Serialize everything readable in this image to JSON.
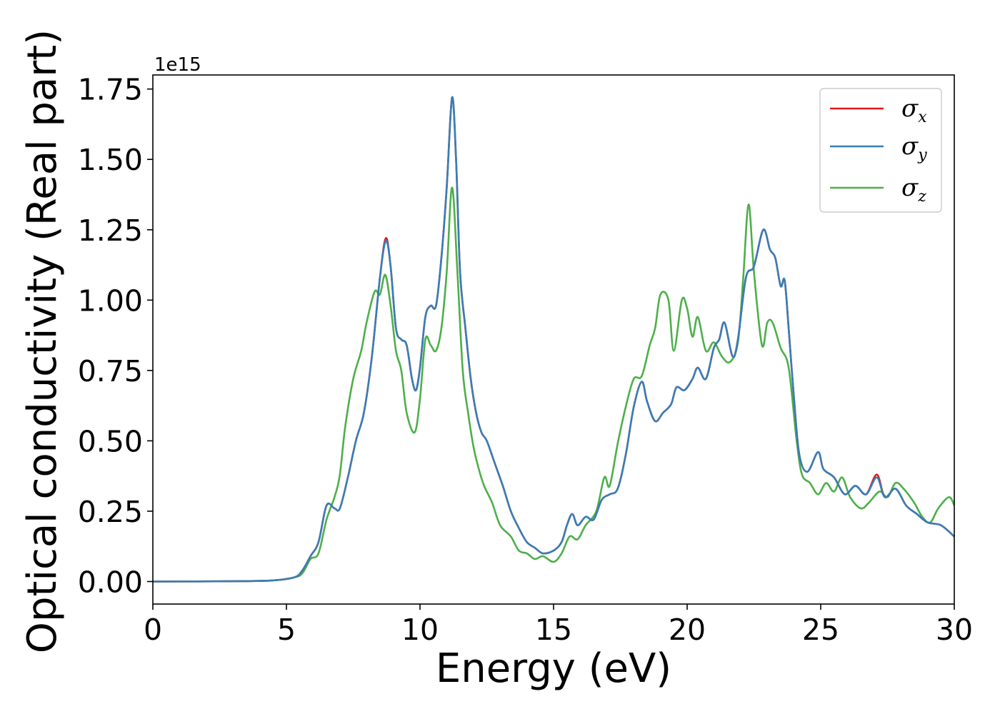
{
  "chart_data": {
    "type": "line",
    "xlabel": "Energy (eV)",
    "ylabel": "Optical conductivity (Real part)",
    "y_offset_text": "1e15",
    "xlim": [
      0,
      30
    ],
    "ylim": [
      -0.08,
      1.8
    ],
    "x_ticks": [
      0,
      5,
      10,
      15,
      20,
      25,
      30
    ],
    "x_tick_labels": [
      "0",
      "5",
      "10",
      "15",
      "20",
      "25",
      "30"
    ],
    "y_ticks": [
      0.0,
      0.25,
      0.5,
      0.75,
      1.0,
      1.25,
      1.5,
      1.75
    ],
    "y_tick_labels": [
      "0.00",
      "0.25",
      "0.50",
      "0.75",
      "1.00",
      "1.25",
      "1.50",
      "1.75"
    ],
    "grid": false,
    "legend_position": "top-right",
    "series": [
      {
        "name": "σx",
        "legend_symbol": "σ",
        "legend_sub": "x",
        "color": "#e41a1c",
        "points": [
          [
            0,
            0
          ],
          [
            3,
            0.001
          ],
          [
            4.5,
            0.004
          ],
          [
            5.3,
            0.015
          ],
          [
            5.6,
            0.04
          ],
          [
            5.9,
            0.09
          ],
          [
            6.2,
            0.14
          ],
          [
            6.5,
            0.27
          ],
          [
            6.8,
            0.26
          ],
          [
            7.0,
            0.26
          ],
          [
            7.3,
            0.37
          ],
          [
            7.6,
            0.5
          ],
          [
            7.9,
            0.6
          ],
          [
            8.2,
            0.8
          ],
          [
            8.5,
            1.08
          ],
          [
            8.72,
            1.22
          ],
          [
            8.9,
            1.12
          ],
          [
            9.1,
            0.9
          ],
          [
            9.3,
            0.86
          ],
          [
            9.5,
            0.84
          ],
          [
            9.7,
            0.72
          ],
          [
            9.85,
            0.68
          ],
          [
            10.0,
            0.76
          ],
          [
            10.2,
            0.94
          ],
          [
            10.4,
            0.98
          ],
          [
            10.6,
            0.98
          ],
          [
            10.8,
            1.15
          ],
          [
            11.0,
            1.4
          ],
          [
            11.2,
            1.72
          ],
          [
            11.35,
            1.5
          ],
          [
            11.5,
            1.1
          ],
          [
            11.7,
            0.9
          ],
          [
            11.9,
            0.72
          ],
          [
            12.1,
            0.6
          ],
          [
            12.3,
            0.53
          ],
          [
            12.5,
            0.5
          ],
          [
            12.8,
            0.42
          ],
          [
            13.1,
            0.34
          ],
          [
            13.4,
            0.25
          ],
          [
            13.7,
            0.19
          ],
          [
            14.0,
            0.14
          ],
          [
            14.3,
            0.12
          ],
          [
            14.6,
            0.1
          ],
          [
            15.0,
            0.11
          ],
          [
            15.3,
            0.14
          ],
          [
            15.5,
            0.2
          ],
          [
            15.7,
            0.24
          ],
          [
            15.9,
            0.2
          ],
          [
            16.2,
            0.23
          ],
          [
            16.5,
            0.22
          ],
          [
            16.8,
            0.29
          ],
          [
            17.1,
            0.31
          ],
          [
            17.4,
            0.33
          ],
          [
            17.7,
            0.45
          ],
          [
            18.0,
            0.62
          ],
          [
            18.3,
            0.71
          ],
          [
            18.5,
            0.64
          ],
          [
            18.8,
            0.57
          ],
          [
            19.1,
            0.6
          ],
          [
            19.4,
            0.63
          ],
          [
            19.6,
            0.69
          ],
          [
            19.9,
            0.68
          ],
          [
            20.2,
            0.72
          ],
          [
            20.4,
            0.76
          ],
          [
            20.7,
            0.72
          ],
          [
            21.0,
            0.83
          ],
          [
            21.2,
            0.86
          ],
          [
            21.4,
            0.92
          ],
          [
            21.7,
            0.8
          ],
          [
            21.9,
            0.86
          ],
          [
            22.2,
            1.08
          ],
          [
            22.5,
            1.12
          ],
          [
            22.85,
            1.25
          ],
          [
            23.1,
            1.18
          ],
          [
            23.3,
            1.15
          ],
          [
            23.5,
            1.05
          ],
          [
            23.65,
            1.07
          ],
          [
            23.8,
            0.9
          ],
          [
            24.0,
            0.65
          ],
          [
            24.2,
            0.45
          ],
          [
            24.5,
            0.39
          ],
          [
            24.9,
            0.46
          ],
          [
            25.1,
            0.4
          ],
          [
            25.5,
            0.37
          ],
          [
            25.9,
            0.31
          ],
          [
            26.3,
            0.34
          ],
          [
            26.7,
            0.31
          ],
          [
            27.1,
            0.38
          ],
          [
            27.4,
            0.3
          ],
          [
            27.8,
            0.33
          ],
          [
            28.2,
            0.27
          ],
          [
            28.6,
            0.24
          ],
          [
            29.0,
            0.21
          ],
          [
            29.5,
            0.2
          ],
          [
            30,
            0.16
          ]
        ]
      },
      {
        "name": "σy",
        "legend_symbol": "σ",
        "legend_sub": "y",
        "color": "#377eb8",
        "points": [
          [
            0,
            0
          ],
          [
            3,
            0.001
          ],
          [
            4.5,
            0.004
          ],
          [
            5.3,
            0.015
          ],
          [
            5.6,
            0.04
          ],
          [
            5.9,
            0.09
          ],
          [
            6.2,
            0.14
          ],
          [
            6.5,
            0.27
          ],
          [
            6.8,
            0.26
          ],
          [
            7.0,
            0.26
          ],
          [
            7.3,
            0.37
          ],
          [
            7.6,
            0.5
          ],
          [
            7.9,
            0.6
          ],
          [
            8.2,
            0.8
          ],
          [
            8.5,
            1.08
          ],
          [
            8.72,
            1.21
          ],
          [
            8.9,
            1.12
          ],
          [
            9.1,
            0.9
          ],
          [
            9.3,
            0.86
          ],
          [
            9.5,
            0.84
          ],
          [
            9.7,
            0.72
          ],
          [
            9.85,
            0.68
          ],
          [
            10.0,
            0.76
          ],
          [
            10.2,
            0.94
          ],
          [
            10.4,
            0.98
          ],
          [
            10.6,
            0.98
          ],
          [
            10.8,
            1.15
          ],
          [
            11.0,
            1.4
          ],
          [
            11.2,
            1.72
          ],
          [
            11.35,
            1.5
          ],
          [
            11.5,
            1.1
          ],
          [
            11.7,
            0.9
          ],
          [
            11.9,
            0.72
          ],
          [
            12.1,
            0.6
          ],
          [
            12.3,
            0.53
          ],
          [
            12.5,
            0.5
          ],
          [
            12.8,
            0.42
          ],
          [
            13.1,
            0.34
          ],
          [
            13.4,
            0.25
          ],
          [
            13.7,
            0.19
          ],
          [
            14.0,
            0.14
          ],
          [
            14.3,
            0.12
          ],
          [
            14.6,
            0.1
          ],
          [
            15.0,
            0.11
          ],
          [
            15.3,
            0.14
          ],
          [
            15.5,
            0.2
          ],
          [
            15.7,
            0.24
          ],
          [
            15.9,
            0.2
          ],
          [
            16.2,
            0.23
          ],
          [
            16.5,
            0.22
          ],
          [
            16.8,
            0.29
          ],
          [
            17.1,
            0.31
          ],
          [
            17.4,
            0.33
          ],
          [
            17.7,
            0.45
          ],
          [
            18.0,
            0.62
          ],
          [
            18.3,
            0.71
          ],
          [
            18.5,
            0.64
          ],
          [
            18.8,
            0.57
          ],
          [
            19.1,
            0.6
          ],
          [
            19.4,
            0.63
          ],
          [
            19.6,
            0.69
          ],
          [
            19.9,
            0.68
          ],
          [
            20.2,
            0.72
          ],
          [
            20.4,
            0.76
          ],
          [
            20.7,
            0.72
          ],
          [
            21.0,
            0.83
          ],
          [
            21.2,
            0.86
          ],
          [
            21.4,
            0.92
          ],
          [
            21.7,
            0.8
          ],
          [
            21.9,
            0.86
          ],
          [
            22.2,
            1.08
          ],
          [
            22.5,
            1.12
          ],
          [
            22.85,
            1.25
          ],
          [
            23.1,
            1.18
          ],
          [
            23.3,
            1.15
          ],
          [
            23.5,
            1.05
          ],
          [
            23.65,
            1.07
          ],
          [
            23.8,
            0.9
          ],
          [
            24.0,
            0.65
          ],
          [
            24.2,
            0.45
          ],
          [
            24.5,
            0.39
          ],
          [
            24.9,
            0.46
          ],
          [
            25.1,
            0.4
          ],
          [
            25.5,
            0.37
          ],
          [
            25.9,
            0.31
          ],
          [
            26.3,
            0.34
          ],
          [
            26.7,
            0.31
          ],
          [
            27.1,
            0.37
          ],
          [
            27.4,
            0.3
          ],
          [
            27.8,
            0.33
          ],
          [
            28.2,
            0.27
          ],
          [
            28.6,
            0.24
          ],
          [
            29.0,
            0.21
          ],
          [
            29.5,
            0.2
          ],
          [
            30,
            0.16
          ]
        ]
      },
      {
        "name": "σz",
        "legend_symbol": "σ",
        "legend_sub": "z",
        "color": "#4daf4a",
        "points": [
          [
            0,
            0
          ],
          [
            3,
            0.001
          ],
          [
            4.5,
            0.004
          ],
          [
            5.3,
            0.015
          ],
          [
            5.6,
            0.03
          ],
          [
            5.9,
            0.08
          ],
          [
            6.2,
            0.1
          ],
          [
            6.5,
            0.22
          ],
          [
            6.8,
            0.3
          ],
          [
            7.0,
            0.38
          ],
          [
            7.2,
            0.55
          ],
          [
            7.5,
            0.72
          ],
          [
            7.8,
            0.82
          ],
          [
            8.0,
            0.92
          ],
          [
            8.3,
            1.03
          ],
          [
            8.5,
            1.02
          ],
          [
            8.7,
            1.09
          ],
          [
            8.9,
            0.98
          ],
          [
            9.1,
            0.82
          ],
          [
            9.3,
            0.75
          ],
          [
            9.5,
            0.6
          ],
          [
            9.8,
            0.53
          ],
          [
            10.0,
            0.65
          ],
          [
            10.2,
            0.86
          ],
          [
            10.4,
            0.84
          ],
          [
            10.6,
            0.82
          ],
          [
            10.8,
            0.9
          ],
          [
            11.0,
            1.1
          ],
          [
            11.2,
            1.4
          ],
          [
            11.4,
            1.1
          ],
          [
            11.6,
            0.75
          ],
          [
            11.8,
            0.6
          ],
          [
            12.0,
            0.48
          ],
          [
            12.2,
            0.4
          ],
          [
            12.4,
            0.34
          ],
          [
            12.7,
            0.28
          ],
          [
            13.0,
            0.2
          ],
          [
            13.4,
            0.16
          ],
          [
            13.7,
            0.11
          ],
          [
            14.0,
            0.1
          ],
          [
            14.3,
            0.08
          ],
          [
            14.6,
            0.09
          ],
          [
            15.0,
            0.07
          ],
          [
            15.3,
            0.1
          ],
          [
            15.6,
            0.16
          ],
          [
            15.9,
            0.15
          ],
          [
            16.2,
            0.2
          ],
          [
            16.6,
            0.25
          ],
          [
            16.9,
            0.37
          ],
          [
            17.1,
            0.34
          ],
          [
            17.4,
            0.49
          ],
          [
            17.7,
            0.62
          ],
          [
            18.0,
            0.72
          ],
          [
            18.3,
            0.73
          ],
          [
            18.6,
            0.84
          ],
          [
            18.8,
            0.9
          ],
          [
            19.0,
            1.02
          ],
          [
            19.3,
            1.0
          ],
          [
            19.5,
            0.82
          ],
          [
            19.8,
            1.0
          ],
          [
            20.0,
            0.97
          ],
          [
            20.2,
            0.87
          ],
          [
            20.4,
            0.94
          ],
          [
            20.7,
            0.82
          ],
          [
            21.0,
            0.85
          ],
          [
            21.3,
            0.8
          ],
          [
            21.6,
            0.78
          ],
          [
            21.9,
            0.85
          ],
          [
            22.1,
            1.08
          ],
          [
            22.3,
            1.34
          ],
          [
            22.5,
            1.1
          ],
          [
            22.8,
            0.84
          ],
          [
            23.0,
            0.92
          ],
          [
            23.2,
            0.92
          ],
          [
            23.5,
            0.83
          ],
          [
            23.8,
            0.76
          ],
          [
            24.1,
            0.5
          ],
          [
            24.3,
            0.38
          ],
          [
            24.6,
            0.35
          ],
          [
            24.9,
            0.31
          ],
          [
            25.2,
            0.35
          ],
          [
            25.5,
            0.32
          ],
          [
            25.8,
            0.37
          ],
          [
            26.1,
            0.3
          ],
          [
            26.5,
            0.26
          ],
          [
            26.8,
            0.28
          ],
          [
            27.2,
            0.32
          ],
          [
            27.5,
            0.3
          ],
          [
            27.8,
            0.35
          ],
          [
            28.1,
            0.33
          ],
          [
            28.5,
            0.28
          ],
          [
            28.8,
            0.23
          ],
          [
            29.1,
            0.21
          ],
          [
            29.4,
            0.26
          ],
          [
            29.8,
            0.3
          ],
          [
            30,
            0.27
          ]
        ]
      }
    ]
  }
}
